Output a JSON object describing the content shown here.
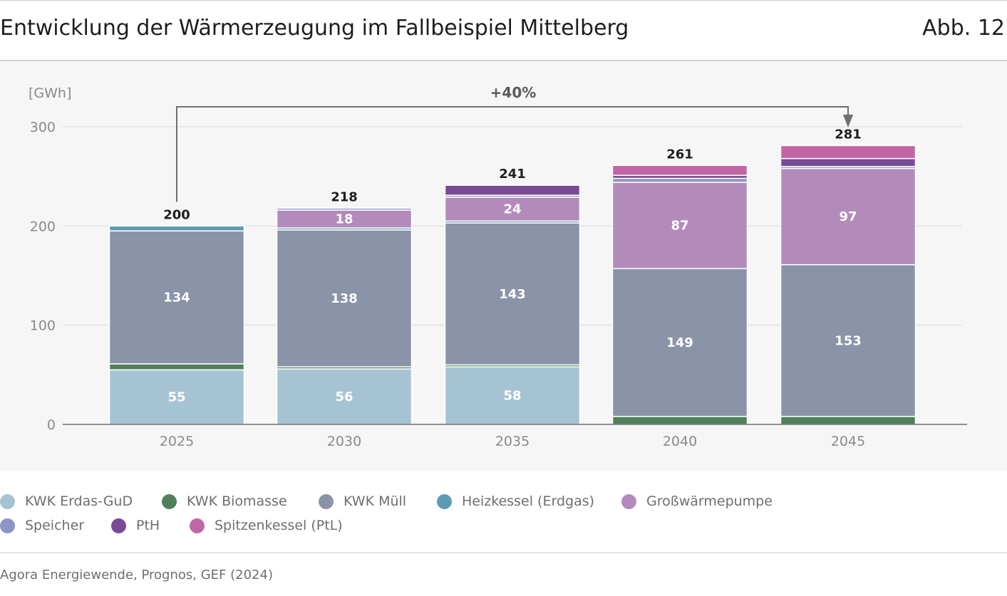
{
  "title": "Entwicklung der Wärmerzeugung im Fallbeispiel Mittelberg",
  "figure_number": "Abb. 12",
  "source": "Agora Energiewende, Prognos, GEF (2024)",
  "colors": {
    "kwk_erdgas": "#a6c3d4",
    "kwk_biomasse": "#4f8059",
    "kwk_muell": "#8a93a7",
    "heizkessel": "#5d9bb5",
    "grosswaermepumpe": "#b38bbb",
    "speicher": "#8b96c6",
    "pth": "#7a4a93",
    "spitzenkessel": "#c166a5"
  },
  "chart_data": {
    "type": "bar",
    "stacked": true,
    "unit_label": "[GWh]",
    "categories": [
      "2025",
      "2030",
      "2035",
      "2040",
      "2045"
    ],
    "ylim": [
      0,
      300
    ],
    "yticks": [
      0,
      100,
      200,
      300
    ],
    "grid": true,
    "series": [
      {
        "name": "KWK Erdas-GuD",
        "key": "kwk_erdgas",
        "values": [
          55,
          56,
          58,
          0,
          0
        ]
      },
      {
        "name": "KWK Biomasse",
        "key": "kwk_biomasse",
        "values": [
          6,
          2,
          2,
          8,
          8
        ]
      },
      {
        "name": "KWK Müll",
        "key": "kwk_muell",
        "values": [
          134,
          138,
          143,
          149,
          153
        ]
      },
      {
        "name": "Heizkessel (Erdgas)",
        "key": "heizkessel",
        "values": [
          5,
          2,
          2,
          0,
          0
        ]
      },
      {
        "name": "Großwärmepumpe",
        "key": "grosswaermepumpe",
        "values": [
          0,
          18,
          24,
          87,
          97
        ]
      },
      {
        "name": "Speicher",
        "key": "speicher",
        "values": [
          0,
          2,
          2,
          4,
          2
        ]
      },
      {
        "name": "PtH",
        "key": "pth",
        "values": [
          0,
          0,
          10,
          3,
          8
        ]
      },
      {
        "name": "Spitzenkessel (PtL)",
        "key": "spitzenkessel",
        "values": [
          0,
          0,
          0,
          10,
          13
        ]
      }
    ],
    "segment_labels": {
      "kwk_erdgas": [
        "55",
        "56",
        "58",
        "",
        ""
      ],
      "kwk_muell": [
        "134",
        "138",
        "143",
        "149",
        "153"
      ],
      "grosswaermepumpe": [
        "",
        "18",
        "24",
        "87",
        "97"
      ]
    },
    "totals": [
      "200",
      "218",
      "241",
      "261",
      "281"
    ],
    "annotation": {
      "text": "+40%",
      "from": "2025",
      "to": "2045"
    }
  },
  "legend": [
    {
      "label": "KWK Erdas-GuD",
      "key": "kwk_erdgas"
    },
    {
      "label": "KWK Biomasse",
      "key": "kwk_biomasse"
    },
    {
      "label": "KWK Müll",
      "key": "kwk_muell"
    },
    {
      "label": "Heizkessel (Erdgas)",
      "key": "heizkessel"
    },
    {
      "label": "Großwärmepumpe",
      "key": "grosswaermepumpe"
    },
    {
      "label": "Speicher",
      "key": "speicher"
    },
    {
      "label": "PtH",
      "key": "pth"
    },
    {
      "label": "Spitzenkessel (PtL)",
      "key": "spitzenkessel"
    }
  ]
}
